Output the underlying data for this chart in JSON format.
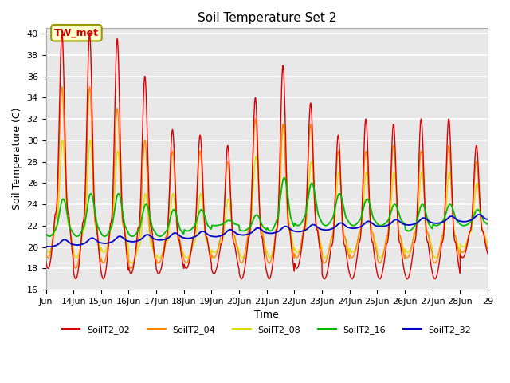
{
  "title": "Soil Temperature Set 2",
  "xlabel": "Time",
  "ylabel": "Soil Temperature (C)",
  "ylim": [
    16,
    40.5
  ],
  "yticks": [
    16,
    18,
    20,
    22,
    24,
    26,
    28,
    30,
    32,
    34,
    36,
    38,
    40
  ],
  "bg_color": "#e8e8e8",
  "annotation_text": "TW_met",
  "annotation_color": "#cc0000",
  "annotation_bg": "#ffffcc",
  "annotation_border": "#999900",
  "line_colors": {
    "SoilT2_02": "#dd0000",
    "SoilT2_04": "#ff8800",
    "SoilT2_08": "#dddd00",
    "SoilT2_16": "#00bb00",
    "SoilT2_32": "#0000cc"
  },
  "legend_labels": [
    "SoilT2_02",
    "SoilT2_04",
    "SoilT2_08",
    "SoilT2_16",
    "SoilT2_32"
  ],
  "x_tick_labels": [
    "Jun",
    "14Jun",
    "15Jun",
    "16Jun",
    "17Jun",
    "18Jun",
    "19Jun",
    "20Jun",
    "21Jun",
    "22Jun",
    "23Jun",
    "24Jun",
    "25Jun",
    "26Jun",
    "27Jun",
    "28Jun",
    "29"
  ],
  "start_day": 13,
  "end_day": 29,
  "points_per_hour": 6
}
